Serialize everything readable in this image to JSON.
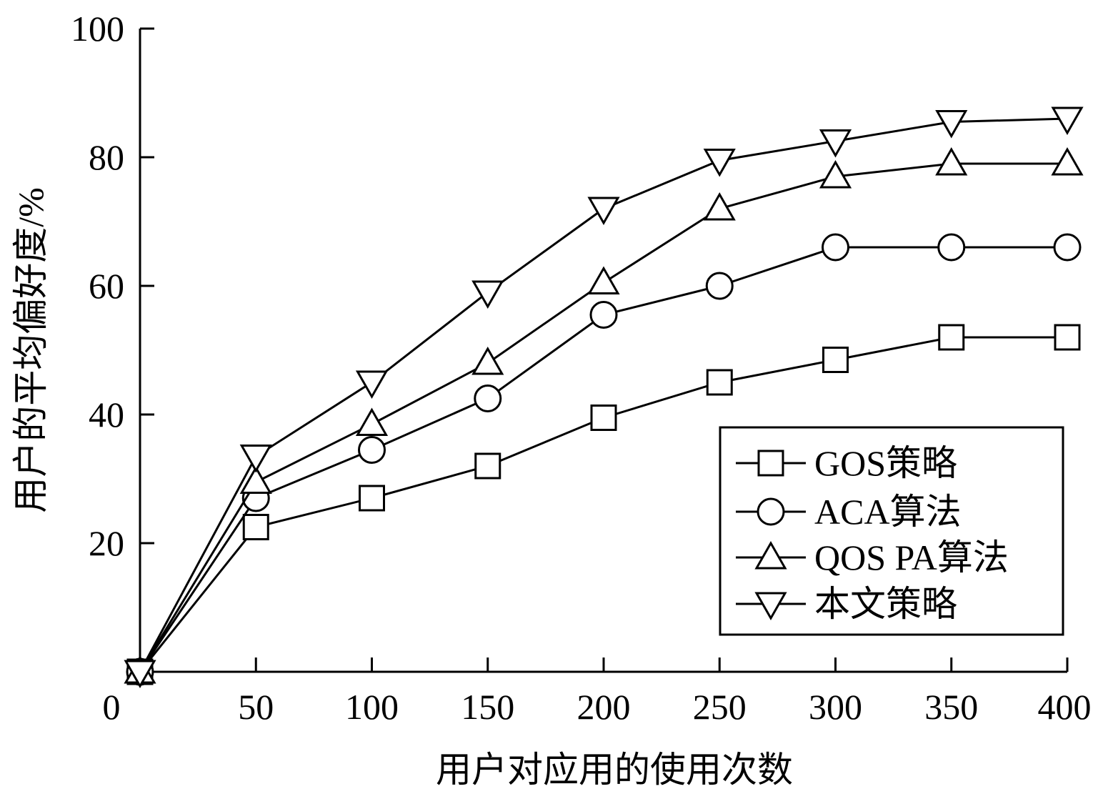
{
  "chart_data": {
    "type": "line",
    "xlabel": "用户对应用的使用次数",
    "ylabel": "用户的平均偏好度/%",
    "xlim": [
      0,
      400
    ],
    "ylim": [
      0,
      100
    ],
    "x_ticks": [
      0,
      50,
      100,
      150,
      200,
      250,
      300,
      350,
      400
    ],
    "y_ticks": [
      20,
      40,
      60,
      80,
      100
    ],
    "grid": false,
    "legend_position": "bottom-right",
    "x": [
      0,
      50,
      100,
      150,
      200,
      250,
      300,
      350,
      400
    ],
    "series": [
      {
        "name": "GOS策略",
        "marker": "square",
        "values": [
          0,
          22.5,
          27,
          32,
          39.5,
          45,
          48.5,
          52,
          52
        ]
      },
      {
        "name": "ACA算法",
        "marker": "circle",
        "values": [
          0,
          27,
          34.5,
          42.5,
          55.5,
          60,
          66,
          66,
          66
        ]
      },
      {
        "name": "QOS PA算法",
        "marker": "triangle-up",
        "values": [
          0,
          29.5,
          38.5,
          48,
          60.5,
          72,
          77,
          79,
          79
        ]
      },
      {
        "name": "本文策略",
        "marker": "triangle-down",
        "values": [
          0,
          33.5,
          45,
          59,
          72,
          79.5,
          82.5,
          85.5,
          86
        ]
      }
    ]
  }
}
